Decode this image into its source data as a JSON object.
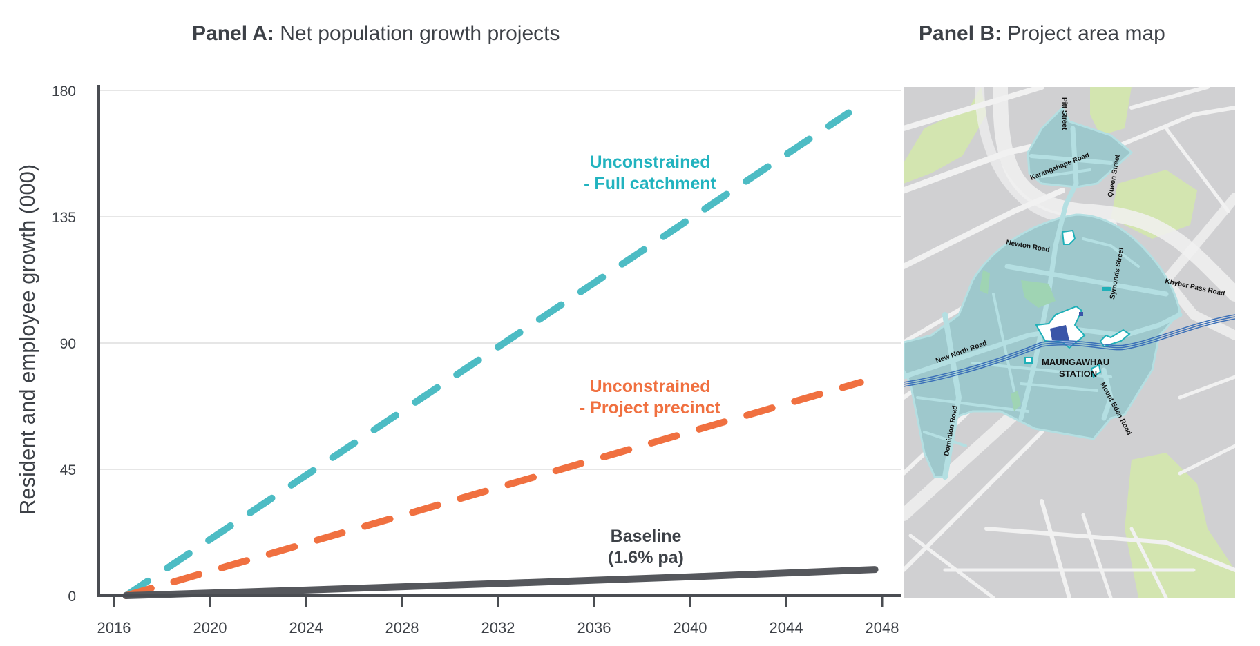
{
  "panel_a": {
    "title_bold": "Panel A:",
    "title_rest": " Net population growth projects"
  },
  "panel_b": {
    "title_bold": "Panel B:",
    "title_rest": " Project area map",
    "map": {
      "street_labels": [
        "Pitt Street",
        "Karangahape Road",
        "Queen Street",
        "Symonds Street",
        "Newton Road",
        "Khyber Pass Road",
        "New North Road",
        "Dominion Road",
        "Mount Eden Road"
      ],
      "station_label": [
        "MAUNGAWHAU",
        "STATION"
      ],
      "colors": {
        "land": "#d0d0d2",
        "road": "#f1f1f1",
        "catchment": "#9ec8cc",
        "catchment_road": "#b4dfe2",
        "park": "#d3e5b0",
        "green_space": "#9fd4b3",
        "rail": "#3a6fb8",
        "site_outline": "#1fb0b8",
        "site_fill": "#ffffff"
      }
    }
  },
  "chart_data": {
    "type": "line",
    "title": "Net population growth projects",
    "xlabel": "",
    "ylabel": "Resident and employee growth (000)",
    "xlim": [
      2015.6,
      2048.8
    ],
    "ylim": [
      0,
      180
    ],
    "xticks": [
      2016,
      2020,
      2024,
      2028,
      2032,
      2036,
      2040,
      2044,
      2048
    ],
    "yticks": [
      0,
      45,
      90,
      135,
      180
    ],
    "grid": "horizontal",
    "series": [
      {
        "name": "Unconstrained - Full catchment",
        "label_lines": [
          "Unconstrained",
          "- Full catchment"
        ],
        "style": "dashed",
        "color": "#4dbcc4",
        "label_color": "#22b3bf",
        "x": [
          2016.5,
          2046.6
        ],
        "y": [
          0,
          172
        ]
      },
      {
        "name": "Unconstrained - Project precinct",
        "label_lines": [
          "Unconstrained",
          "- Project precinct"
        ],
        "style": "dashed",
        "color": "#f07040",
        "label_color": "#f07040",
        "x": [
          2016.5,
          2047.1
        ],
        "y": [
          0,
          76
        ]
      },
      {
        "name": "Baseline (1.6% pa)",
        "label_lines": [
          "Baseline",
          "(1.6% pa)"
        ],
        "style": "solid",
        "color": "#55575c",
        "label_color": "#3d4147",
        "x": [
          2016.5,
          2024,
          2032,
          2040,
          2047.7
        ],
        "y": [
          0,
          2.0,
          4.3,
          6.7,
          9.3
        ]
      }
    ]
  }
}
